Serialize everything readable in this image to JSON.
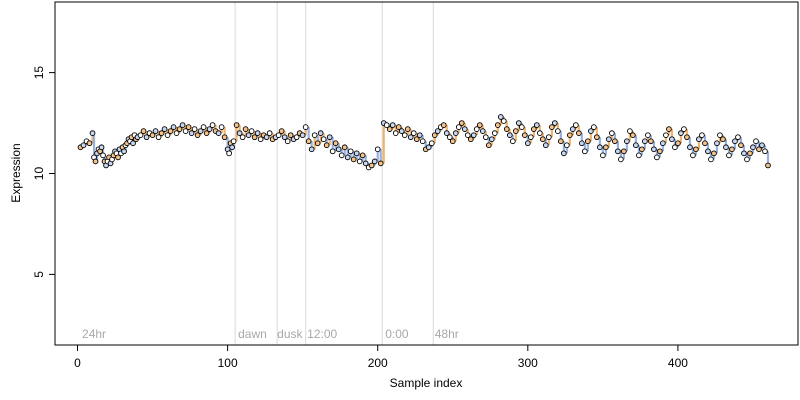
{
  "chart_data": {
    "type": "scatter",
    "xlabel": "Sample index",
    "ylabel": "Expression",
    "xlim": [
      -15,
      480
    ],
    "ylim": [
      1.5,
      18.5
    ],
    "x_ticks": [
      0,
      100,
      200,
      300,
      400
    ],
    "y_ticks": [
      5,
      10,
      15
    ],
    "grid": false,
    "region_boundaries": [
      105,
      133,
      152,
      203,
      237
    ],
    "region_labels": [
      {
        "x": 3,
        "label": "24hr"
      },
      {
        "x": 107,
        "label": "dawn"
      },
      {
        "x": 133,
        "label": "dusk"
      },
      {
        "x": 153,
        "label": "12:00"
      },
      {
        "x": 205,
        "label": "0:00"
      },
      {
        "x": 238,
        "label": "48hr"
      }
    ],
    "colors": {
      "point_light": "#f5c28a",
      "point_blue": "#c5d7f2",
      "stem_orange": "#e8a24a",
      "stem_blue": "#7f9fd6",
      "boundary_line": "#d9d9d9"
    },
    "series": [
      {
        "points": [
          [
            2,
            11.3
          ],
          [
            4,
            11.4
          ],
          [
            6,
            11.6
          ],
          [
            8,
            11.5
          ],
          [
            10,
            12.0
          ],
          [
            11,
            10.8
          ],
          [
            12,
            10.6
          ],
          [
            13,
            11.0
          ],
          [
            14,
            11.2
          ],
          [
            15,
            11.1
          ],
          [
            16,
            11.3
          ],
          [
            17,
            10.9
          ],
          [
            18,
            10.6
          ],
          [
            19,
            10.4
          ],
          [
            20,
            10.6
          ],
          [
            21,
            10.8
          ],
          [
            22,
            10.5
          ],
          [
            23,
            10.7
          ],
          [
            24,
            10.9
          ],
          [
            25,
            11.1
          ],
          [
            26,
            11.0
          ],
          [
            27,
            10.8
          ],
          [
            28,
            11.2
          ],
          [
            29,
            11.0
          ],
          [
            30,
            11.3
          ],
          [
            31,
            11.1
          ],
          [
            32,
            11.4
          ],
          [
            33,
            11.5
          ],
          [
            34,
            11.7
          ],
          [
            35,
            11.6
          ],
          [
            36,
            11.8
          ],
          [
            37,
            11.5
          ],
          [
            38,
            11.9
          ],
          [
            39,
            11.7
          ],
          [
            40,
            11.8
          ],
          [
            42,
            11.9
          ],
          [
            44,
            12.1
          ],
          [
            46,
            11.8
          ],
          [
            48,
            12.0
          ],
          [
            50,
            11.9
          ],
          [
            52,
            12.1
          ],
          [
            54,
            11.8
          ],
          [
            56,
            12.0
          ],
          [
            58,
            12.2
          ],
          [
            60,
            11.9
          ],
          [
            62,
            12.1
          ],
          [
            64,
            12.3
          ],
          [
            66,
            12.0
          ],
          [
            68,
            12.2
          ],
          [
            70,
            12.4
          ],
          [
            72,
            12.1
          ],
          [
            74,
            12.3
          ],
          [
            76,
            12.0
          ],
          [
            78,
            12.2
          ],
          [
            80,
            11.9
          ],
          [
            82,
            12.1
          ],
          [
            84,
            12.3
          ],
          [
            86,
            12.0
          ],
          [
            88,
            12.2
          ],
          [
            90,
            12.4
          ],
          [
            92,
            12.1
          ],
          [
            94,
            12.0
          ],
          [
            96,
            12.3
          ],
          [
            98,
            11.8
          ],
          [
            100,
            11.2
          ],
          [
            101,
            11.0
          ],
          [
            102,
            11.5
          ],
          [
            103,
            11.3
          ],
          [
            104,
            11.6
          ],
          [
            106,
            12.4
          ],
          [
            108,
            12.0
          ],
          [
            110,
            11.8
          ],
          [
            112,
            12.2
          ],
          [
            114,
            11.9
          ],
          [
            116,
            12.1
          ],
          [
            118,
            11.8
          ],
          [
            120,
            12.0
          ],
          [
            122,
            11.7
          ],
          [
            124,
            11.9
          ],
          [
            126,
            11.8
          ],
          [
            128,
            12.0
          ],
          [
            130,
            11.7
          ],
          [
            132,
            11.8
          ],
          [
            134,
            11.9
          ],
          [
            136,
            12.1
          ],
          [
            138,
            11.8
          ],
          [
            140,
            11.6
          ],
          [
            142,
            11.9
          ],
          [
            144,
            11.7
          ],
          [
            146,
            11.8
          ],
          [
            148,
            12.0
          ],
          [
            150,
            11.9
          ],
          [
            152,
            12.3
          ],
          [
            154,
            11.6
          ],
          [
            156,
            11.2
          ],
          [
            158,
            11.9
          ],
          [
            160,
            11.5
          ],
          [
            162,
            12.0
          ],
          [
            164,
            11.7
          ],
          [
            166,
            11.4
          ],
          [
            168,
            11.8
          ],
          [
            170,
            11.1
          ],
          [
            172,
            11.5
          ],
          [
            174,
            11.2
          ],
          [
            176,
            10.9
          ],
          [
            178,
            11.3
          ],
          [
            180,
            10.8
          ],
          [
            182,
            11.1
          ],
          [
            184,
            10.7
          ],
          [
            186,
            11.0
          ],
          [
            188,
            10.6
          ],
          [
            190,
            10.9
          ],
          [
            192,
            10.5
          ],
          [
            194,
            10.3
          ],
          [
            196,
            10.4
          ],
          [
            198,
            10.6
          ],
          [
            200,
            11.2
          ],
          [
            202,
            10.5
          ],
          [
            204,
            12.5
          ],
          [
            206,
            12.4
          ],
          [
            208,
            12.2
          ],
          [
            210,
            12.4
          ],
          [
            212,
            12.0
          ],
          [
            214,
            12.3
          ],
          [
            216,
            12.1
          ],
          [
            218,
            11.9
          ],
          [
            220,
            12.2
          ],
          [
            222,
            11.8
          ],
          [
            224,
            12.0
          ],
          [
            226,
            11.7
          ],
          [
            228,
            11.9
          ],
          [
            230,
            11.6
          ],
          [
            232,
            11.2
          ],
          [
            234,
            11.3
          ],
          [
            236,
            11.5
          ],
          [
            238,
            11.9
          ],
          [
            240,
            12.1
          ],
          [
            242,
            12.3
          ],
          [
            244,
            12.4
          ],
          [
            246,
            12.0
          ],
          [
            248,
            11.8
          ],
          [
            250,
            11.6
          ],
          [
            252,
            12.0
          ],
          [
            254,
            12.3
          ],
          [
            256,
            12.5
          ],
          [
            258,
            12.2
          ],
          [
            260,
            11.9
          ],
          [
            262,
            11.7
          ],
          [
            264,
            11.9
          ],
          [
            266,
            12.2
          ],
          [
            268,
            12.4
          ],
          [
            270,
            12.1
          ],
          [
            272,
            11.8
          ],
          [
            274,
            11.4
          ],
          [
            276,
            11.7
          ],
          [
            278,
            12.0
          ],
          [
            280,
            12.4
          ],
          [
            282,
            12.8
          ],
          [
            284,
            12.6
          ],
          [
            286,
            12.2
          ],
          [
            288,
            11.9
          ],
          [
            290,
            11.6
          ],
          [
            292,
            12.1
          ],
          [
            294,
            12.5
          ],
          [
            296,
            12.3
          ],
          [
            298,
            11.9
          ],
          [
            300,
            11.5
          ],
          [
            302,
            11.8
          ],
          [
            304,
            12.2
          ],
          [
            306,
            12.4
          ],
          [
            308,
            12.0
          ],
          [
            310,
            11.7
          ],
          [
            312,
            11.4
          ],
          [
            314,
            11.8
          ],
          [
            316,
            12.3
          ],
          [
            318,
            12.5
          ],
          [
            320,
            12.1
          ],
          [
            322,
            11.6
          ],
          [
            324,
            11.0
          ],
          [
            326,
            11.4
          ],
          [
            328,
            11.9
          ],
          [
            330,
            12.2
          ],
          [
            332,
            12.4
          ],
          [
            334,
            12.0
          ],
          [
            336,
            11.5
          ],
          [
            338,
            11.1
          ],
          [
            340,
            11.6
          ],
          [
            342,
            12.1
          ],
          [
            344,
            12.3
          ],
          [
            346,
            11.8
          ],
          [
            348,
            11.3
          ],
          [
            350,
            10.9
          ],
          [
            352,
            11.3
          ],
          [
            354,
            11.7
          ],
          [
            356,
            12.0
          ],
          [
            358,
            11.6
          ],
          [
            360,
            11.1
          ],
          [
            362,
            10.7
          ],
          [
            364,
            11.1
          ],
          [
            366,
            11.6
          ],
          [
            368,
            12.1
          ],
          [
            370,
            11.9
          ],
          [
            372,
            11.4
          ],
          [
            374,
            10.9
          ],
          [
            376,
            11.2
          ],
          [
            378,
            11.6
          ],
          [
            380,
            11.9
          ],
          [
            382,
            11.6
          ],
          [
            384,
            11.2
          ],
          [
            386,
            10.8
          ],
          [
            388,
            11.1
          ],
          [
            390,
            11.5
          ],
          [
            392,
            11.9
          ],
          [
            394,
            12.2
          ],
          [
            396,
            11.7
          ],
          [
            398,
            11.3
          ],
          [
            400,
            11.5
          ],
          [
            402,
            12.0
          ],
          [
            404,
            12.2
          ],
          [
            406,
            11.8
          ],
          [
            408,
            11.3
          ],
          [
            410,
            10.9
          ],
          [
            412,
            11.2
          ],
          [
            414,
            11.7
          ],
          [
            416,
            11.9
          ],
          [
            418,
            11.5
          ],
          [
            420,
            11.1
          ],
          [
            422,
            10.7
          ],
          [
            424,
            11.0
          ],
          [
            426,
            11.5
          ],
          [
            428,
            11.9
          ],
          [
            430,
            11.7
          ],
          [
            432,
            11.3
          ],
          [
            434,
            10.9
          ],
          [
            436,
            11.2
          ],
          [
            438,
            11.6
          ],
          [
            440,
            11.8
          ],
          [
            442,
            11.4
          ],
          [
            444,
            11.0
          ],
          [
            446,
            10.7
          ],
          [
            448,
            11.0
          ],
          [
            450,
            11.3
          ],
          [
            452,
            11.6
          ],
          [
            454,
            11.2
          ],
          [
            456,
            11.4
          ],
          [
            458,
            11.1
          ],
          [
            460,
            10.4
          ]
        ]
      }
    ]
  }
}
